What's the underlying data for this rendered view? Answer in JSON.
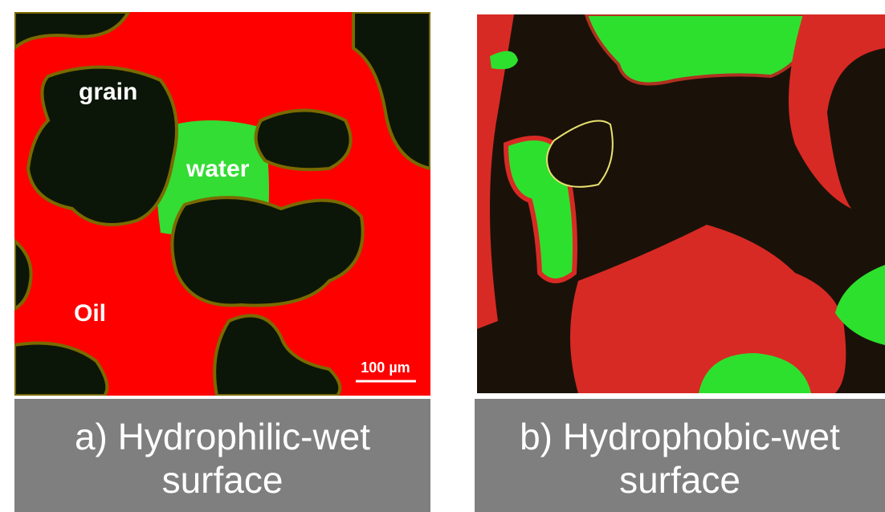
{
  "panels": [
    {
      "labels": {
        "grain": "grain",
        "water": "water",
        "oil": "Oil",
        "scale_bar": "100 µm"
      },
      "caption": "a) Hydrophilic-wet surface"
    },
    {
      "caption": "b) Hydrophobic-wet surface"
    }
  ]
}
